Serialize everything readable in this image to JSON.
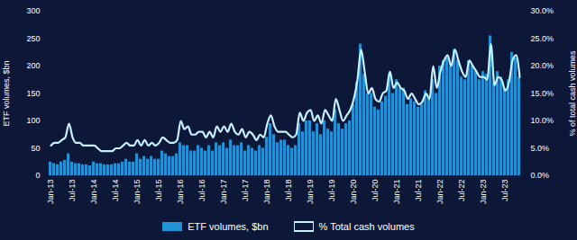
{
  "chart_data": {
    "type": "bar",
    "categories": [
      "Jan-13",
      null,
      null,
      null,
      null,
      null,
      "Jul-13",
      null,
      null,
      null,
      null,
      null,
      "Jan-14",
      null,
      null,
      null,
      null,
      null,
      "Jul-14",
      null,
      null,
      null,
      null,
      null,
      "Jan-15",
      null,
      null,
      null,
      null,
      null,
      "Jul-15",
      null,
      null,
      null,
      null,
      null,
      "Jan-16",
      null,
      null,
      null,
      null,
      null,
      "Jul-16",
      null,
      null,
      null,
      null,
      null,
      "Jan-17",
      null,
      null,
      null,
      null,
      null,
      "Jul-17",
      null,
      null,
      null,
      null,
      null,
      "Jan-18",
      null,
      null,
      null,
      null,
      null,
      "Jul-18",
      null,
      null,
      null,
      null,
      null,
      "Jan-19",
      null,
      null,
      null,
      null,
      null,
      "Jul-19",
      null,
      null,
      null,
      null,
      null,
      "Jan-20",
      null,
      null,
      null,
      null,
      null,
      "Jul-20",
      null,
      null,
      null,
      null,
      null,
      "Jan-21",
      null,
      null,
      null,
      null,
      null,
      "Jul-21",
      null,
      null,
      null,
      null,
      null,
      "Jan-22",
      null,
      null,
      null,
      null,
      null,
      "Jul-22",
      null,
      null,
      null,
      null,
      null,
      "Jan-23",
      null,
      null,
      null,
      null,
      null,
      "Jul-23",
      null,
      null,
      null,
      null
    ],
    "series": [
      {
        "name": "ETF volumes, $bn",
        "type": "bar",
        "color": "#1f93d8",
        "values": [
          25,
          22,
          20,
          25,
          28,
          40,
          25,
          22,
          22,
          20,
          20,
          18,
          25,
          22,
          22,
          20,
          20,
          20,
          22,
          22,
          25,
          30,
          25,
          25,
          40,
          30,
          35,
          30,
          35,
          30,
          30,
          45,
          40,
          35,
          35,
          40,
          60,
          55,
          55,
          45,
          45,
          55,
          50,
          45,
          55,
          45,
          60,
          55,
          60,
          50,
          65,
          55,
          55,
          60,
          45,
          55,
          50,
          45,
          55,
          50,
          70,
          95,
          75,
          60,
          65,
          65,
          55,
          50,
          55,
          95,
          80,
          100,
          100,
          80,
          95,
          75,
          100,
          85,
          80,
          120,
          95,
          85,
          95,
          100,
          130,
          170,
          240,
          185,
          150,
          150,
          125,
          120,
          135,
          145,
          185,
          150,
          175,
          160,
          160,
          130,
          140,
          135,
          125,
          130,
          155,
          140,
          175,
          150,
          200,
          210,
          215,
          200,
          230,
          210,
          180,
          175,
          210,
          200,
          190,
          175,
          190,
          185,
          255,
          170,
          190,
          180,
          160,
          175,
          225,
          215,
          180
        ]
      },
      {
        "name": "% Total cash volumes",
        "type": "line",
        "axis": "y2",
        "color": "#c8f1ff",
        "values": [
          5.5,
          6,
          6,
          6.5,
          7,
          9.5,
          7,
          6,
          6,
          5.5,
          5.5,
          5.5,
          5.5,
          5,
          4.5,
          4.5,
          4.5,
          4.5,
          5,
          5,
          5.5,
          6,
          5.5,
          5.5,
          6.5,
          5.5,
          6.5,
          5.5,
          6,
          5.5,
          6,
          7,
          6.5,
          6,
          6,
          6.5,
          10,
          8.5,
          9,
          7.5,
          7.5,
          8,
          8,
          7,
          8,
          7,
          9,
          8,
          9,
          8,
          9.5,
          8,
          7.5,
          8.5,
          7,
          8,
          7.5,
          6.5,
          7.5,
          7,
          9.5,
          11,
          9,
          8,
          8,
          8,
          7.5,
          7,
          7.5,
          11.5,
          10,
          11.5,
          12,
          10,
          11,
          9.5,
          12,
          11,
          10,
          14,
          12,
          10,
          11,
          12,
          14,
          17.5,
          23,
          19,
          15,
          16,
          14,
          13.5,
          15,
          15.5,
          19,
          16,
          17,
          16,
          15.5,
          14,
          15,
          14,
          13,
          13.5,
          15,
          14,
          20,
          16,
          19,
          21,
          22,
          20,
          23,
          21,
          19,
          18,
          21,
          20,
          19,
          18,
          18,
          17.5,
          24,
          16.5,
          18,
          17.5,
          15.5,
          17,
          21,
          22,
          18
        ]
      }
    ],
    "ylabel": "ETF volumes, $bn",
    "y2label": "% of total cash volumes",
    "ylim": [
      0,
      300
    ],
    "yticks": [
      0,
      50,
      100,
      150,
      200,
      250,
      300
    ],
    "y2lim": [
      0,
      30
    ],
    "y2ticks": [
      {
        "value": 0,
        "label": "0.0%"
      },
      {
        "value": 5,
        "label": "5.0%"
      },
      {
        "value": 10,
        "label": "10.0%"
      },
      {
        "value": 15,
        "label": "15.0%"
      },
      {
        "value": 20,
        "label": "20.0%"
      },
      {
        "value": 25,
        "label": "25.0%"
      },
      {
        "value": 30,
        "label": "30.0%"
      }
    ],
    "grid": false,
    "legend": "bottom"
  }
}
